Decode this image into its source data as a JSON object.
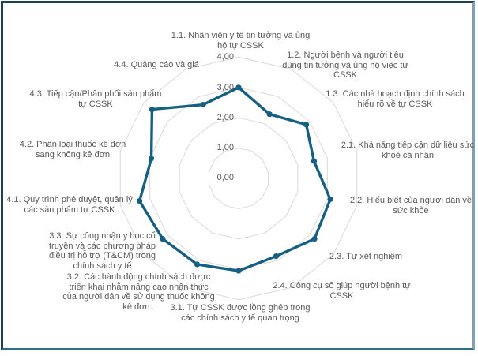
{
  "chart_data": {
    "type": "radar",
    "title": "",
    "legend": "none",
    "grid": "on",
    "axis_range": [
      0,
      4
    ],
    "tick_labels": [
      "4,00",
      "3,00",
      "2,00",
      "1,00",
      "0,00"
    ],
    "colors": {
      "series": "#156082",
      "grid": "#D9D9D9",
      "label": "#595959",
      "frame_dark": "#1E4059",
      "frame_teal": "#2E6F85",
      "frame_light": "#7FA0B5"
    },
    "axes": [
      {
        "label": "1.1. Nhân viên y tế tin tưởng và ủng hộ tự CSSK",
        "value": 3.0
      },
      {
        "label": "1.2. Người bệnh và người tiêu dùng tin tưởng và ủng hộ việc tự CSSK",
        "value": 2.35
      },
      {
        "label": "1.3. Các nhà hoạch định chính sách hiểu rõ về tự CSSK",
        "value": 2.85
      },
      {
        "label": "2.1. Khả năng tiếp cận dữ liệu sức khoẻ cá nhân",
        "value": 2.55
      },
      {
        "label": "2.2. Hiểu biết của người dân về sức khỏe",
        "value": 3.1
      },
      {
        "label": "2.3. Tự xét nghiệm",
        "value": 3.2
      },
      {
        "label": "2.4. Công cụ số giúp người bệnh tự CSSK",
        "value": 2.85
      },
      {
        "label": "3.1. Tự CSSK được lồng ghép trong các chính sách y tế quan trọng",
        "value": 3.05
      },
      {
        "label": "3.2. Các hành động chính sách được triển khai nhằm nâng cao nhận thức của người dân về sử dụng thuốc không kê đơn..",
        "value": 3.15
      },
      {
        "label": "3.3. Sự công nhận y học cổ truyền và các phương pháp điều trị hỗ trợ (T&CM) trong chính sách y tế",
        "value": 3.2
      },
      {
        "label": "4.1. Quy trình phê duyệt, quản lý các sản phẩm tự CSSK",
        "value": 3.35
      },
      {
        "label": "4.2. Phân loại thuốc kê đơn sang không kê đơn",
        "value": 2.95
      },
      {
        "label": "4.3. Tiếp cận/Phân phối sản phẩm tự CSSK",
        "value": 3.65
      },
      {
        "label": "4.4. Quảng cáo và giá",
        "value": 2.7
      }
    ]
  }
}
